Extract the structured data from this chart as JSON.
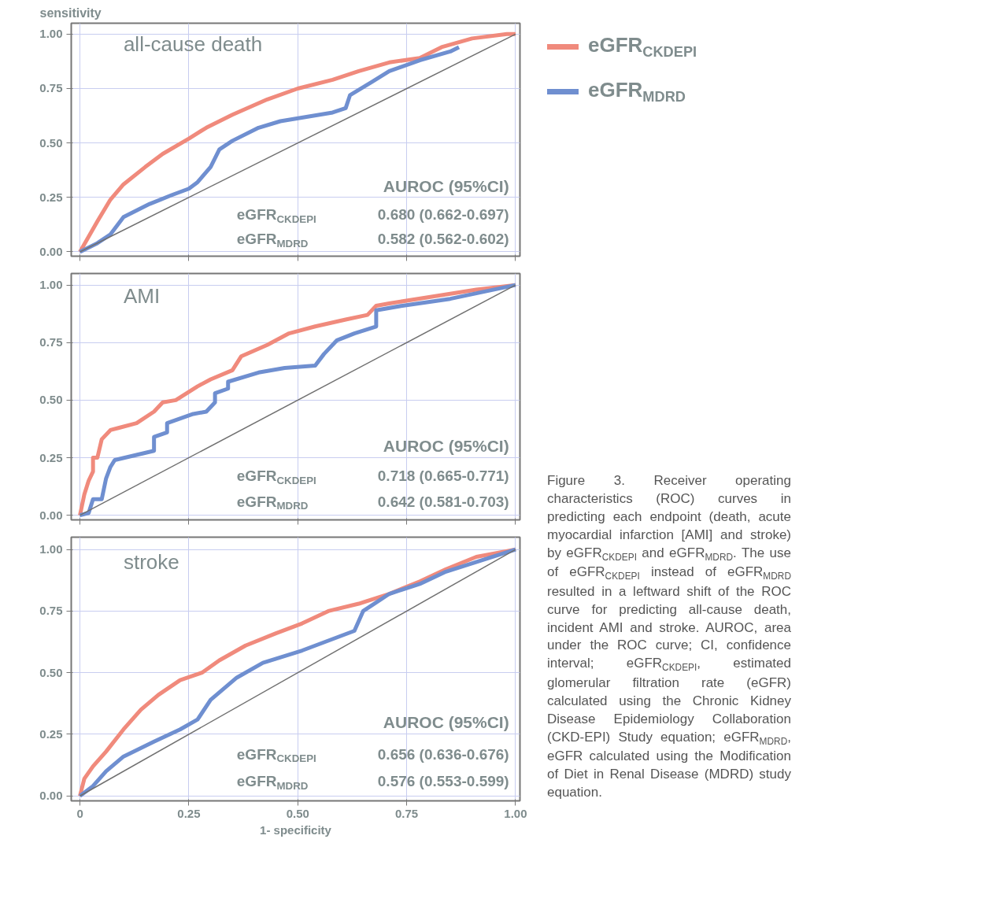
{
  "chart_data": [
    {
      "type": "line",
      "title": "all-cause death",
      "ylabel": "sensitivity",
      "xlim": [
        -0.02,
        1.01
      ],
      "ylim": [
        -0.02,
        1.05
      ],
      "xticks": [
        0,
        0.25,
        0.5,
        0.75,
        1
      ],
      "yticks": [
        {
          "value": 0,
          "label": "0.00"
        },
        {
          "value": 0.25,
          "label": "0.25"
        },
        {
          "value": 0.5,
          "label": "0.50"
        },
        {
          "value": 0.75,
          "label": "0.75"
        },
        {
          "value": 1,
          "label": "1.00"
        }
      ],
      "tick_labels": "y",
      "grid": true,
      "legend": "right",
      "line_style": "solid",
      "series": [
        {
          "name": "eGFR$_{CKDEPI}$",
          "color": "#f08a7c",
          "x": [
            0,
            0.04,
            0.07,
            0.1,
            0.15,
            0.19,
            0.25,
            0.29,
            0.35,
            0.43,
            0.5,
            0.58,
            0.64,
            0.71,
            0.78,
            0.83,
            0.9,
            0.98,
            1
          ],
          "values": [
            0,
            0.14,
            0.24,
            0.31,
            0.39,
            0.45,
            0.52,
            0.57,
            0.63,
            0.7,
            0.75,
            0.79,
            0.83,
            0.87,
            0.89,
            0.94,
            0.98,
            1,
            1
          ]
        },
        {
          "name": "eGFR$_{MDRD}$",
          "color": "#6f8fd0",
          "x": [
            0,
            0.04,
            0.07,
            0.1,
            0.16,
            0.21,
            0.25,
            0.27,
            0.3,
            0.32,
            0.35,
            0.41,
            0.46,
            0.52,
            0.58,
            0.61,
            0.62,
            0.67,
            0.71,
            0.78,
            0.85,
            0.87
          ],
          "values": [
            0,
            0.04,
            0.08,
            0.16,
            0.22,
            0.26,
            0.29,
            0.32,
            0.39,
            0.47,
            0.51,
            0.57,
            0.6,
            0.62,
            0.64,
            0.66,
            0.72,
            0.78,
            0.83,
            0.88,
            0.92,
            0.94
          ]
        },
        {
          "type": "line",
          "color": "#707070",
          "x": [
            0,
            1
          ],
          "values": [
            0,
            1
          ]
        }
      ],
      "annotations": [
        "AUROC (95%CI)",
        "eGFR$_{CKDEPI}$",
        "0.680 (0.662-0.697)",
        "eGFR$_{MDRD}$",
        "0.582 (0.562-0.602)"
      ]
    },
    {
      "type": "line",
      "title": "AMI",
      "xlim": [
        -0.02,
        1.01
      ],
      "ylim": [
        -0.02,
        1.05
      ],
      "xticks": [
        0,
        0.25,
        0.5,
        0.75,
        1
      ],
      "yticks": [
        {
          "value": 0,
          "label": "0.00"
        },
        {
          "value": 0.25,
          "label": "0.25"
        },
        {
          "value": 0.5,
          "label": "0.50"
        },
        {
          "value": 0.75,
          "label": "0.75"
        },
        {
          "value": 1,
          "label": "1.00"
        }
      ],
      "tick_labels": "y",
      "grid": true,
      "line_style": "solid",
      "series": [
        {
          "color": "#f08a7c",
          "x": [
            0,
            0.01,
            0.02,
            0.03,
            0.03,
            0.04,
            0.05,
            0.07,
            0.09,
            0.13,
            0.17,
            0.19,
            0.22,
            0.27,
            0.3,
            0.35,
            0.37,
            0.43,
            0.48,
            0.54,
            0.61,
            0.66,
            0.68,
            0.71,
            0.81,
            0.91,
            1
          ],
          "values": [
            0,
            0.09,
            0.15,
            0.19,
            0.25,
            0.25,
            0.33,
            0.37,
            0.38,
            0.4,
            0.45,
            0.49,
            0.5,
            0.56,
            0.59,
            0.63,
            0.69,
            0.74,
            0.79,
            0.82,
            0.85,
            0.87,
            0.91,
            0.92,
            0.95,
            0.98,
            1
          ]
        },
        {
          "color": "#6f8fd0",
          "x": [
            0,
            0.02,
            0.03,
            0.05,
            0.06,
            0.07,
            0.08,
            0.17,
            0.17,
            0.2,
            0.2,
            0.26,
            0.29,
            0.31,
            0.31,
            0.34,
            0.34,
            0.41,
            0.47,
            0.54,
            0.56,
            0.59,
            0.63,
            0.68,
            0.68,
            0.74,
            0.85,
            1
          ],
          "values": [
            0,
            0.01,
            0.07,
            0.07,
            0.16,
            0.21,
            0.24,
            0.28,
            0.34,
            0.36,
            0.4,
            0.44,
            0.45,
            0.49,
            0.53,
            0.55,
            0.58,
            0.62,
            0.64,
            0.65,
            0.7,
            0.76,
            0.79,
            0.82,
            0.89,
            0.91,
            0.94,
            1
          ]
        },
        {
          "type": "line",
          "color": "#707070",
          "x": [
            0,
            1
          ],
          "values": [
            0,
            1
          ]
        }
      ],
      "annotations": [
        "AUROC (95%CI)",
        "eGFR$_{CKDEPI}$",
        "0.718 (0.665-0.771)",
        "eGFR$_{MDRD}$",
        "0.642 (0.581-0.703)"
      ]
    },
    {
      "type": "line",
      "title": "stroke",
      "xlabel": "1- specificity",
      "xlim": [
        -0.02,
        1.01
      ],
      "ylim": [
        -0.02,
        1.05
      ],
      "xticks": [
        0,
        0.25,
        {
          "value": 0.5,
          "label": "0.50"
        },
        0.75,
        {
          "value": 1,
          "label": "1.00"
        }
      ],
      "yticks": [
        {
          "value": 0,
          "label": "0.00"
        },
        {
          "value": 0.25,
          "label": "0.25"
        },
        {
          "value": 0.5,
          "label": "0.50"
        },
        {
          "value": 0.75,
          "label": "0.75"
        },
        {
          "value": 1,
          "label": "1.00"
        }
      ],
      "grid": true,
      "line_style": "solid",
      "series": [
        {
          "color": "#f08a7c",
          "x": [
            0,
            0.01,
            0.03,
            0.06,
            0.1,
            0.14,
            0.18,
            0.23,
            0.28,
            0.32,
            0.38,
            0.45,
            0.51,
            0.57,
            0.64,
            0.71,
            0.78,
            0.84,
            0.91,
            1
          ],
          "values": [
            0,
            0.07,
            0.12,
            0.18,
            0.27,
            0.35,
            0.41,
            0.47,
            0.5,
            0.55,
            0.61,
            0.66,
            0.7,
            0.75,
            0.78,
            0.82,
            0.87,
            0.92,
            0.97,
            1
          ]
        },
        {
          "color": "#6f8fd0",
          "x": [
            0,
            0.03,
            0.06,
            0.1,
            0.17,
            0.23,
            0.27,
            0.3,
            0.36,
            0.42,
            0.51,
            0.57,
            0.63,
            0.65,
            0.71,
            0.78,
            0.84,
            1
          ],
          "values": [
            0,
            0.04,
            0.1,
            0.16,
            0.22,
            0.27,
            0.31,
            0.39,
            0.48,
            0.54,
            0.59,
            0.63,
            0.67,
            0.75,
            0.82,
            0.86,
            0.91,
            1
          ]
        },
        {
          "type": "line",
          "color": "#707070",
          "x": [
            0,
            1
          ],
          "values": [
            0,
            1
          ]
        }
      ],
      "annotations": [
        "AUROC (95%CI)",
        "eGFR$_{CKDEPI}$",
        "0.656 (0.636-0.676)",
        "eGFR$_{MDRD}$",
        "0.576 (0.553-0.599)",
        "Figure 3. Receiver operating characteristics (ROC) curves in predicting each endpoint (death, acute myocardial infarction [AMI] and stroke) by eGFR$_{CKDEPI}$ and eGFR$_{MDRD}$. The use of eGFR$_{CKDEPI}$ instead of eGFR$_{MDRD}$ resulted in a leftward shift of the ROC curve for predicting all-cause death, incident AMI and stroke. AUROC, area under the ROC curve; CI, confidence interval; eGFR$_{CKDEPI}$, estimated glomerular filtration rate (eGFR) calculated using the Chronic Kidney Disease Epidemiology Collaboration (CKD-EPI) Study equation; eGFR$_{MDRD}$, eGFR calculated using the Modification of Diet in Renal Disease (MDRD) study equation."
      ]
    }
  ]
}
